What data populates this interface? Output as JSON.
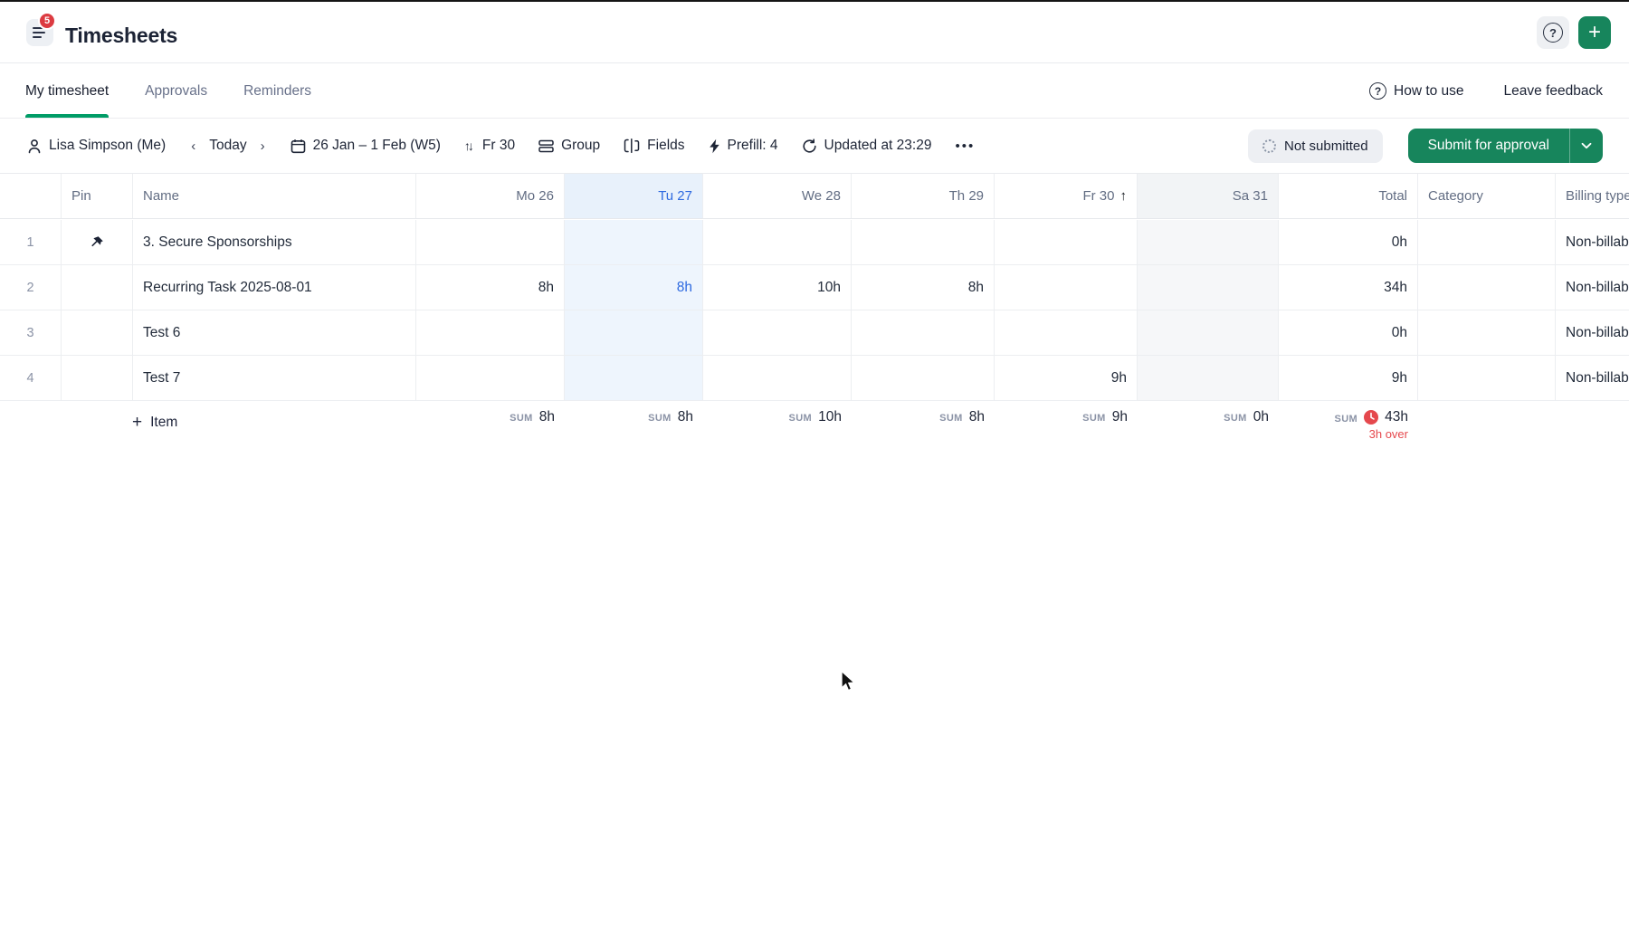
{
  "app": {
    "title": "Timesheets",
    "menu_badge": "5",
    "help_glyph": "?",
    "add_glyph": "+"
  },
  "tabs": [
    {
      "label": "My timesheet",
      "active": true
    },
    {
      "label": "Approvals",
      "active": false
    },
    {
      "label": "Reminders",
      "active": false
    }
  ],
  "tab_links": {
    "how_to_use": "How to use",
    "leave_feedback": "Leave feedback"
  },
  "toolbar": {
    "user": "Lisa Simpson (Me)",
    "prev_glyph": "‹",
    "today": "Today",
    "next_glyph": "›",
    "date_range": "26 Jan – 1 Feb (W5)",
    "sort_glyph": "↑↓",
    "sort_by": "Fr 30",
    "group": "Group",
    "fields": "Fields",
    "prefill": "Prefill: 4",
    "updated": "Updated at 23:29",
    "more_glyph": "•••",
    "status": "Not submitted",
    "submit": "Submit for approval"
  },
  "table": {
    "columns": [
      {
        "key": "num",
        "label": ""
      },
      {
        "key": "pin",
        "label": "Pin"
      },
      {
        "key": "name",
        "label": "Name"
      },
      {
        "key": "mo",
        "label": "Mo 26"
      },
      {
        "key": "tu",
        "label": "Tu 27"
      },
      {
        "key": "we",
        "label": "We 28"
      },
      {
        "key": "th",
        "label": "Th 29"
      },
      {
        "key": "fr",
        "label": "Fr 30",
        "sorted": "asc"
      },
      {
        "key": "sa",
        "label": "Sa 31"
      },
      {
        "key": "total",
        "label": "Total"
      },
      {
        "key": "category",
        "label": "Category"
      },
      {
        "key": "billing",
        "label": "Billing type"
      }
    ],
    "sort_arrow_glyph": "↑",
    "rows": [
      {
        "num": "1",
        "pinned": true,
        "name": "3. Secure Sponsorships",
        "mo": "",
        "tu": "",
        "we": "",
        "th": "",
        "fr": "",
        "sa": "",
        "total": "0h",
        "category": "",
        "billing": "Non-billable"
      },
      {
        "num": "2",
        "pinned": false,
        "name": "Recurring Task 2025-08-01",
        "mo": "8h",
        "tu": "8h",
        "we": "10h",
        "th": "8h",
        "fr": "",
        "sa": "",
        "total": "34h",
        "category": "",
        "billing": "Non-billable"
      },
      {
        "num": "3",
        "pinned": false,
        "name": "Test 6",
        "mo": "",
        "tu": "",
        "we": "",
        "th": "",
        "fr": "",
        "sa": "",
        "total": "0h",
        "category": "",
        "billing": "Non-billable"
      },
      {
        "num": "4",
        "pinned": false,
        "name": "Test 7",
        "mo": "",
        "tu": "",
        "we": "",
        "th": "",
        "fr": "9h",
        "sa": "",
        "total": "9h",
        "category": "",
        "billing": "Non-billable"
      }
    ],
    "footer": {
      "add_item_label": "Item",
      "add_item_glyph": "+",
      "sum_label": "SUM",
      "sums": {
        "mo": "8h",
        "tu": "8h",
        "we": "10h",
        "th": "8h",
        "fr": "9h",
        "sa": "0h",
        "total": "43h"
      },
      "overtime": "3h over"
    }
  },
  "colors": {
    "accent_green": "#17855c",
    "tab_underline_green": "#009c66",
    "badge_red": "#dc3b41",
    "overtime_red": "#e5484d",
    "selected_day_blue": "#2e6ae0",
    "selected_day_bg": "#eef5fd",
    "weekend_bg": "#f6f7f9"
  }
}
